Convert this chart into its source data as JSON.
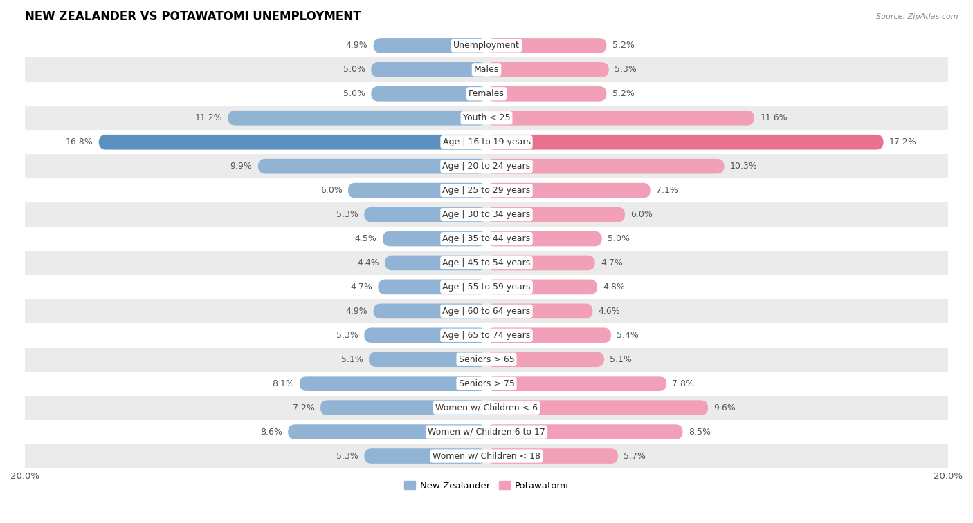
{
  "title": "NEW ZEALANDER VS POTAWATOMI UNEMPLOYMENT",
  "source": "Source: ZipAtlas.com",
  "categories": [
    "Unemployment",
    "Males",
    "Females",
    "Youth < 25",
    "Age | 16 to 19 years",
    "Age | 20 to 24 years",
    "Age | 25 to 29 years",
    "Age | 30 to 34 years",
    "Age | 35 to 44 years",
    "Age | 45 to 54 years",
    "Age | 55 to 59 years",
    "Age | 60 to 64 years",
    "Age | 65 to 74 years",
    "Seniors > 65",
    "Seniors > 75",
    "Women w/ Children < 6",
    "Women w/ Children 6 to 17",
    "Women w/ Children < 18"
  ],
  "new_zealander": [
    4.9,
    5.0,
    5.0,
    11.2,
    16.8,
    9.9,
    6.0,
    5.3,
    4.5,
    4.4,
    4.7,
    4.9,
    5.3,
    5.1,
    8.1,
    7.2,
    8.6,
    5.3
  ],
  "potawatomi": [
    5.2,
    5.3,
    5.2,
    11.6,
    17.2,
    10.3,
    7.1,
    6.0,
    5.0,
    4.7,
    4.8,
    4.6,
    5.4,
    5.1,
    7.8,
    9.6,
    8.5,
    5.7
  ],
  "nz_color": "#92b4d4",
  "pot_color": "#f2a0b8",
  "nz_color_highlight": "#5a8fc0",
  "pot_color_highlight": "#e8728e",
  "row_bg_white": "#ffffff",
  "row_bg_gray": "#ebebeb",
  "xlim": 20.0,
  "bar_height": 0.62,
  "label_fontsize": 9.0,
  "category_fontsize": 9.0,
  "title_fontsize": 12,
  "value_color": "#555555"
}
